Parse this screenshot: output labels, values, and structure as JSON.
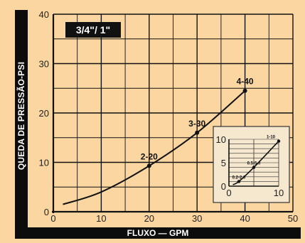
{
  "chart_data": {
    "type": "line",
    "title": "3/4\"/ 1\"",
    "xlabel": "FLUXO — GPM",
    "ylabel": "QUEDA DE PRESSÃO-PSI",
    "xlim": [
      0,
      50
    ],
    "ylim": [
      0,
      40
    ],
    "xticks": [
      0,
      10,
      20,
      30,
      40,
      50
    ],
    "yticks": [
      0,
      10,
      20,
      30,
      40
    ],
    "grid": true,
    "curve": [
      [
        2,
        1.5
      ],
      [
        10,
        4
      ],
      [
        20,
        9.3
      ],
      [
        30,
        16
      ],
      [
        40,
        24.5
      ]
    ],
    "points": [
      {
        "label": "2-20",
        "x": 20,
        "y": 9.3
      },
      {
        "label": "3-30",
        "x": 30,
        "y": 16
      },
      {
        "label": "4-40",
        "x": 40,
        "y": 24.5
      }
    ],
    "inset": {
      "xlim": [
        0,
        10
      ],
      "ylim": [
        0,
        10
      ],
      "xticks": [
        0,
        10
      ],
      "yticks": [
        0,
        5,
        10
      ],
      "curve": [
        [
          0.8,
          0.3
        ],
        [
          2,
          1
        ],
        [
          5,
          4
        ],
        [
          10,
          9.6
        ]
      ],
      "points": [
        {
          "label": "0.2-2.0",
          "x": 2,
          "y": 1
        },
        {
          "label": "0.5-5.0",
          "x": 5,
          "y": 4
        },
        {
          "label": "1-10",
          "x": 10,
          "y": 9.6
        }
      ]
    }
  },
  "colors": {
    "background": "#fbd6a0",
    "line": "#111111",
    "grid": "#111111",
    "inset_bg": "#f6e7cf"
  }
}
